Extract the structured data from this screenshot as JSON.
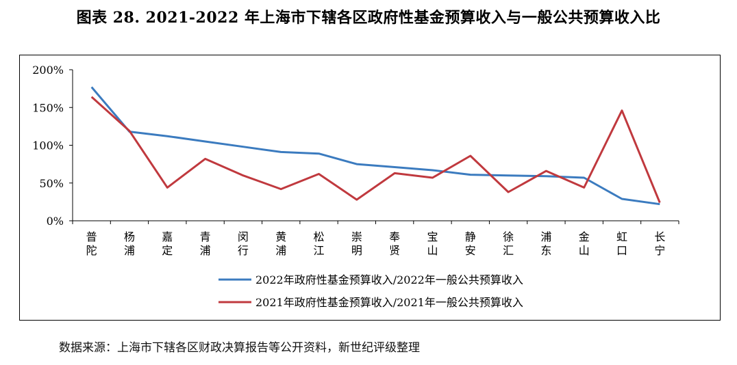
{
  "title": "图表 28. 2021-2022 年上海市下辖各区政府性基金预算收入与一般公共预算收入比",
  "source": "数据来源：上海市下辖各区财政决算报告等公开资料，新世纪评级整理",
  "chart_data": {
    "type": "line",
    "title": "图表 28. 2021-2022 年上海市下辖各区政府性基金预算收入与一般公共预算收入比",
    "xlabel": "",
    "ylabel": "",
    "ylim": [
      0,
      200
    ],
    "yticks": [
      "0%",
      "50%",
      "100%",
      "150%",
      "200%"
    ],
    "categories": [
      "普陀",
      "杨浦",
      "嘉定",
      "青浦",
      "闵行",
      "黄浦",
      "松江",
      "崇明",
      "奉贤",
      "宝山",
      "静安",
      "徐汇",
      "浦东",
      "金山",
      "虹口",
      "长宁"
    ],
    "series": [
      {
        "name": "2022年政府性基金预算收入/2022年一般公共预算收入",
        "color": "#3b7bbf",
        "values": [
          177,
          118,
          112,
          105,
          98,
          91,
          89,
          75,
          71,
          67,
          61,
          60,
          59,
          57,
          29,
          22
        ]
      },
      {
        "name": "2021年政府性基金预算收入/2021年一般公共预算收入",
        "color": "#c0393e",
        "values": [
          164,
          119,
          44,
          82,
          60,
          42,
          62,
          28,
          63,
          57,
          86,
          38,
          66,
          44,
          146,
          24
        ]
      }
    ],
    "grid": false,
    "legend": "bottom"
  }
}
